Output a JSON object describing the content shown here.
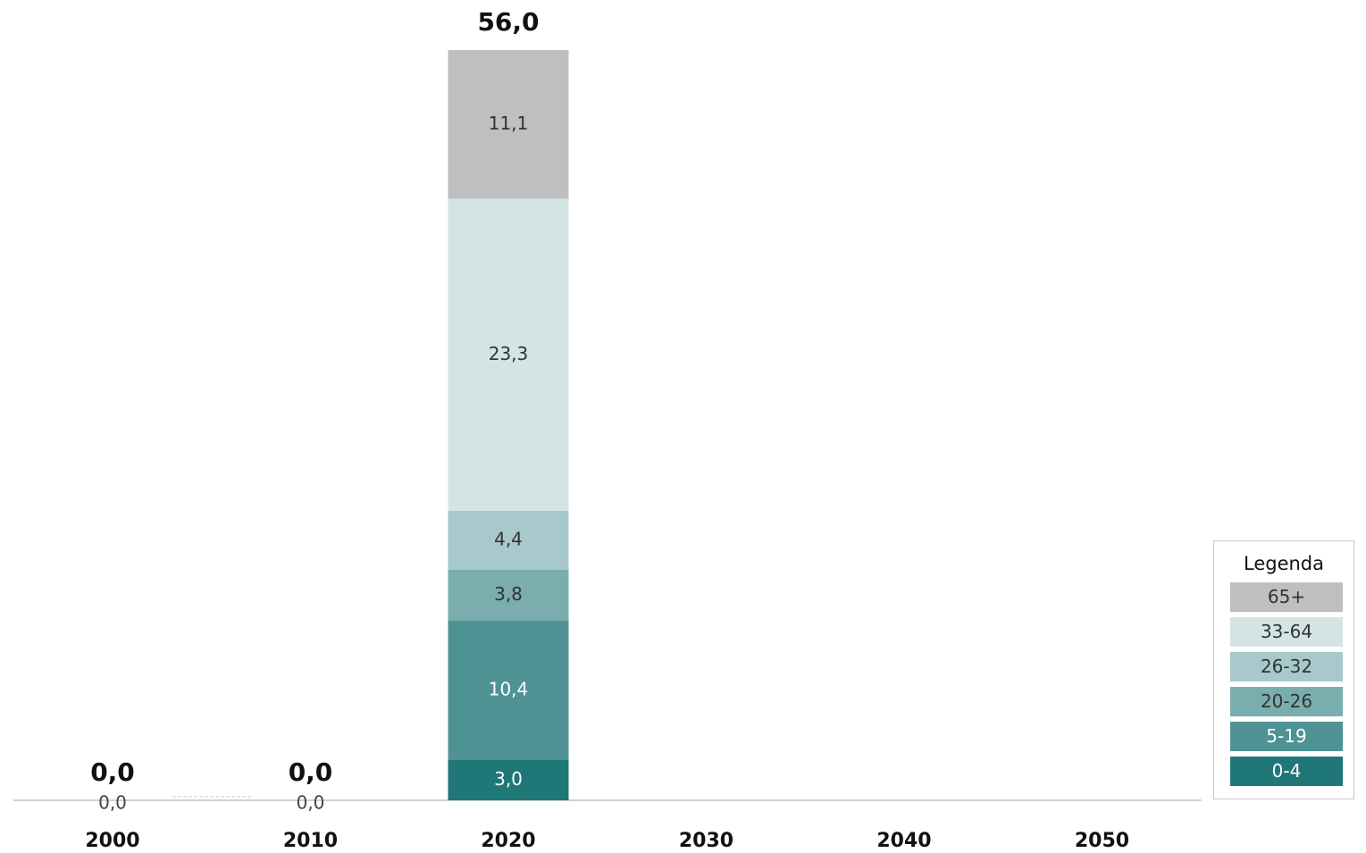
{
  "chart_data": {
    "type": "bar",
    "stacked": true,
    "categories": [
      "2000",
      "2010",
      "2020",
      "2030",
      "2040",
      "2050"
    ],
    "series": [
      {
        "name": "0-4",
        "color": "#1f7777",
        "text_color": "#ffffff",
        "values": [
          0.0,
          0.0,
          3.0,
          null,
          null,
          null
        ]
      },
      {
        "name": "5-19",
        "color": "#4f9294",
        "text_color": "#ffffff",
        "values": [
          null,
          null,
          10.4,
          null,
          null,
          null
        ]
      },
      {
        "name": "20-26",
        "color": "#7aadae",
        "text_color": "#333333",
        "values": [
          null,
          null,
          3.8,
          null,
          null,
          null
        ]
      },
      {
        "name": "26-32",
        "color": "#a8c9cb",
        "text_color": "#333333",
        "values": [
          null,
          null,
          4.4,
          null,
          null,
          null
        ]
      },
      {
        "name": "33-64",
        "color": "#d3e4e5",
        "text_color": "#333333",
        "values": [
          null,
          null,
          23.3,
          null,
          null,
          null
        ]
      },
      {
        "name": "65+",
        "color": "#bfbfbf",
        "text_color": "#333333",
        "values": [
          null,
          null,
          11.1,
          null,
          null,
          null
        ]
      }
    ],
    "segment_labels": [
      [
        "0,0",
        "",
        "",
        "",
        "",
        ""
      ],
      [
        "0,0",
        "",
        "",
        "",
        "",
        ""
      ],
      [
        "3,0",
        "10,4",
        "3,8",
        "4,4",
        "23,3",
        "11,1"
      ],
      [],
      [],
      []
    ],
    "totals": [
      0.0,
      0.0,
      56.0,
      null,
      null,
      null
    ],
    "total_labels": [
      "0,0",
      "0,0",
      "56,0",
      "",
      "",
      ""
    ],
    "ylim": [
      0,
      56
    ],
    "grid": false,
    "legend_placement": "bottom-right",
    "title": "",
    "xlabel": "",
    "ylabel": ""
  },
  "legend": {
    "title": "Legenda",
    "items": [
      "65+",
      "33-64",
      "26-32",
      "20-26",
      "5-19",
      "0-4"
    ]
  }
}
